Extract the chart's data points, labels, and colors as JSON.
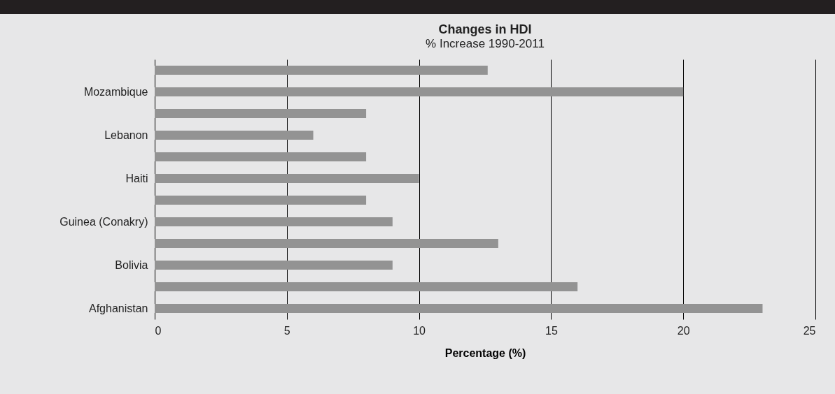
{
  "chart_data": {
    "type": "bar",
    "orientation": "horizontal",
    "title": "Changes in HDI",
    "subtitle": "% Increase 1990-2011",
    "xlabel": "Percentage (%)",
    "categories": [
      null,
      "Mozambique",
      null,
      "Lebanon",
      null,
      "Haiti",
      null,
      "Guinea (Conakry)",
      null,
      "Bolivia",
      null,
      "Afghanistan"
    ],
    "values": [
      12.6,
      20,
      8,
      6,
      8,
      10,
      8,
      9,
      13,
      9,
      16,
      23
    ],
    "color": "#939393",
    "xlim": [
      0,
      25
    ],
    "xticks": [
      0,
      5,
      10,
      15,
      20,
      25
    ],
    "grid": "x"
  }
}
